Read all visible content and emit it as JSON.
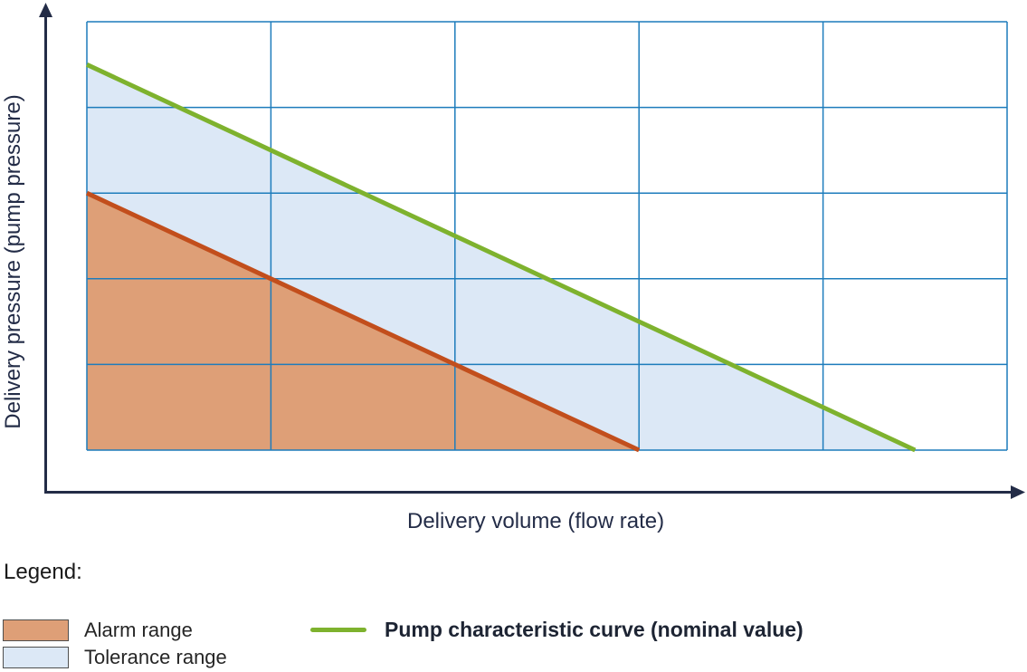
{
  "figure": {
    "type": "pump-characteristic-diagram",
    "background": "#ffffff"
  },
  "colors": {
    "axis": "#232c47",
    "grid": "#1d7cbc",
    "nominal_curve": "#7eb22e",
    "alarm_boundary": "#c24e1c",
    "alarm_fill": "#de9f77",
    "tolerance_fill": "#dce8f6"
  },
  "chart_data": {
    "type": "area",
    "title": "",
    "xlabel": "Delivery volume (flow rate)",
    "ylabel": "Delivery pressure (pump pressure)",
    "x_range": [
      0,
      5
    ],
    "y_range": [
      0,
      5
    ],
    "grid": true,
    "grid_cols": 5,
    "grid_rows": 5,
    "axis_tick_labels": "none",
    "series": [
      {
        "name": "Pump characteristic curve (nominal value)",
        "kind": "line",
        "points": [
          [
            0,
            4.5
          ],
          [
            4.5,
            0
          ]
        ],
        "color_key": "nominal_curve",
        "stroke_width": 5
      },
      {
        "name": "Alarm range boundary",
        "kind": "line",
        "points": [
          [
            0,
            3
          ],
          [
            3,
            0
          ]
        ],
        "color_key": "alarm_boundary",
        "stroke_width": 5
      }
    ],
    "areas": [
      {
        "name": "Tolerance range",
        "polygon": [
          [
            0,
            4.5
          ],
          [
            4.5,
            0
          ],
          [
            3,
            0
          ],
          [
            0,
            3
          ]
        ],
        "color_key": "tolerance_fill"
      },
      {
        "name": "Alarm range",
        "polygon": [
          [
            0,
            3
          ],
          [
            3,
            0
          ],
          [
            0,
            0
          ]
        ],
        "color_key": "alarm_fill"
      }
    ]
  },
  "legend": {
    "title": "Legend:",
    "items": [
      {
        "label": "Alarm range",
        "swatch": "area",
        "color_key": "alarm_fill"
      },
      {
        "label": "Tolerance range",
        "swatch": "area",
        "color_key": "tolerance_fill"
      },
      {
        "label": "Pump characteristic curve (nominal value)",
        "swatch": "line",
        "color_key": "nominal_curve"
      }
    ]
  }
}
